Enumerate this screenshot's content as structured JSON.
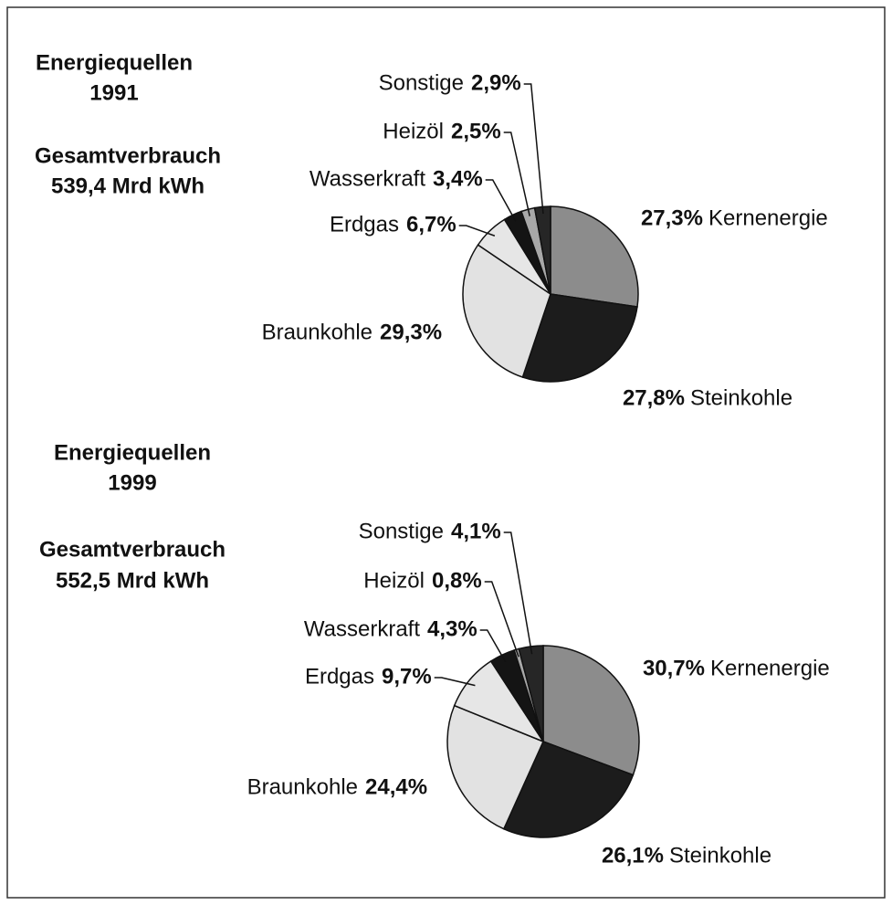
{
  "chart_data": [
    {
      "type": "pie",
      "title": [
        "Energiequellen",
        "1991"
      ],
      "annotation": [
        "Gesamtverbrauch",
        "539,4 Mrd kWh"
      ],
      "categories": [
        "Kernenergie",
        "Steinkohle",
        "Braunkohle",
        "Erdgas",
        "Wasserkraft",
        "Heizöl",
        "Sonstige"
      ],
      "values": [
        27.3,
        27.8,
        29.3,
        6.7,
        3.4,
        2.5,
        2.9
      ],
      "value_labels": [
        "27,3%",
        "27,8%",
        "29,3%",
        "6,7%",
        "3,4%",
        "2,5%",
        "2,9%"
      ],
      "colors": [
        "#8c8c8c",
        "#1c1c1c",
        "#e2e2e2",
        "#e6e6e6",
        "#141414",
        "#a8a8a8",
        "#262626"
      ]
    },
    {
      "type": "pie",
      "title": [
        "Energiequellen",
        "1999"
      ],
      "annotation": [
        "Gesamtverbrauch",
        "552,5 Mrd kWh"
      ],
      "categories": [
        "Kernenergie",
        "Steinkohle",
        "Braunkohle",
        "Erdgas",
        "Wasserkraft",
        "Heizöl",
        "Sonstige"
      ],
      "values": [
        30.7,
        26.1,
        24.4,
        9.7,
        4.3,
        0.8,
        4.1
      ],
      "value_labels": [
        "30,7%",
        "26,1%",
        "24,4%",
        "9,7%",
        "4,3%",
        "0,8%",
        "4,1%"
      ],
      "colors": [
        "#8c8c8c",
        "#1c1c1c",
        "#e2e2e2",
        "#e6e6e6",
        "#141414",
        "#a8a8a8",
        "#262626"
      ]
    }
  ]
}
